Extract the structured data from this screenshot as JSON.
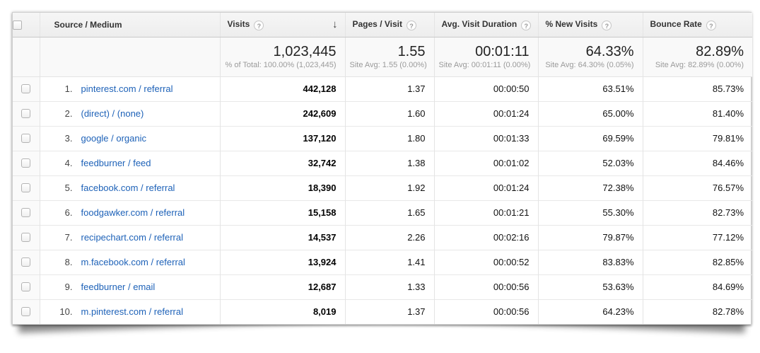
{
  "icons": {
    "help": "?",
    "sort_desc": "↓"
  },
  "colors": {
    "link_blue": "#1e62b8",
    "header_bg": "#f0f0f0",
    "summary_bg": "#f9f9f9",
    "border": "#e4e4e4",
    "subtext_gray": "#9a9a9a"
  },
  "table": {
    "columns": [
      {
        "key": "source_medium",
        "label": "Source / Medium",
        "help": false,
        "sorted": false,
        "summary_value": "",
        "summary_sub": ""
      },
      {
        "key": "visits",
        "label": "Visits",
        "help": true,
        "sorted": true,
        "summary_value": "1,023,445",
        "summary_sub": "% of Total: 100.00% (1,023,445)"
      },
      {
        "key": "pages_per_visit",
        "label": "Pages / Visit",
        "help": true,
        "sorted": false,
        "summary_value": "1.55",
        "summary_sub": "Site Avg: 1.55 (0.00%)"
      },
      {
        "key": "avg_visit_duration",
        "label": "Avg. Visit Duration",
        "help": true,
        "sorted": false,
        "summary_value": "00:01:11",
        "summary_sub": "Site Avg: 00:01:11 (0.00%)"
      },
      {
        "key": "pct_new_visits",
        "label": "% New Visits",
        "help": true,
        "sorted": false,
        "summary_value": "64.33%",
        "summary_sub": "Site Avg: 64.30% (0.05%)"
      },
      {
        "key": "bounce_rate",
        "label": "Bounce Rate",
        "help": true,
        "sorted": false,
        "summary_value": "82.89%",
        "summary_sub": "Site Avg: 82.89% (0.00%)"
      }
    ],
    "rows": [
      {
        "rank": "1.",
        "source_medium": "pinterest.com / referral",
        "visits": "442,128",
        "pages_per_visit": "1.37",
        "avg_visit_duration": "00:00:50",
        "pct_new_visits": "63.51%",
        "bounce_rate": "85.73%"
      },
      {
        "rank": "2.",
        "source_medium": "(direct) / (none)",
        "visits": "242,609",
        "pages_per_visit": "1.60",
        "avg_visit_duration": "00:01:24",
        "pct_new_visits": "65.00%",
        "bounce_rate": "81.40%"
      },
      {
        "rank": "3.",
        "source_medium": "google / organic",
        "visits": "137,120",
        "pages_per_visit": "1.80",
        "avg_visit_duration": "00:01:33",
        "pct_new_visits": "69.59%",
        "bounce_rate": "79.81%"
      },
      {
        "rank": "4.",
        "source_medium": "feedburner / feed",
        "visits": "32,742",
        "pages_per_visit": "1.38",
        "avg_visit_duration": "00:01:02",
        "pct_new_visits": "52.03%",
        "bounce_rate": "84.46%"
      },
      {
        "rank": "5.",
        "source_medium": "facebook.com / referral",
        "visits": "18,390",
        "pages_per_visit": "1.92",
        "avg_visit_duration": "00:01:24",
        "pct_new_visits": "72.38%",
        "bounce_rate": "76.57%"
      },
      {
        "rank": "6.",
        "source_medium": "foodgawker.com / referral",
        "visits": "15,158",
        "pages_per_visit": "1.65",
        "avg_visit_duration": "00:01:21",
        "pct_new_visits": "55.30%",
        "bounce_rate": "82.73%"
      },
      {
        "rank": "7.",
        "source_medium": "recipechart.com / referral",
        "visits": "14,537",
        "pages_per_visit": "2.26",
        "avg_visit_duration": "00:02:16",
        "pct_new_visits": "79.87%",
        "bounce_rate": "77.12%"
      },
      {
        "rank": "8.",
        "source_medium": "m.facebook.com / referral",
        "visits": "13,924",
        "pages_per_visit": "1.41",
        "avg_visit_duration": "00:00:52",
        "pct_new_visits": "83.83%",
        "bounce_rate": "82.85%"
      },
      {
        "rank": "9.",
        "source_medium": "feedburner / email",
        "visits": "12,687",
        "pages_per_visit": "1.33",
        "avg_visit_duration": "00:00:56",
        "pct_new_visits": "53.63%",
        "bounce_rate": "84.69%"
      },
      {
        "rank": "10.",
        "source_medium": "m.pinterest.com / referral",
        "visits": "8,019",
        "pages_per_visit": "1.37",
        "avg_visit_duration": "00:00:56",
        "pct_new_visits": "64.23%",
        "bounce_rate": "82.78%"
      }
    ]
  }
}
